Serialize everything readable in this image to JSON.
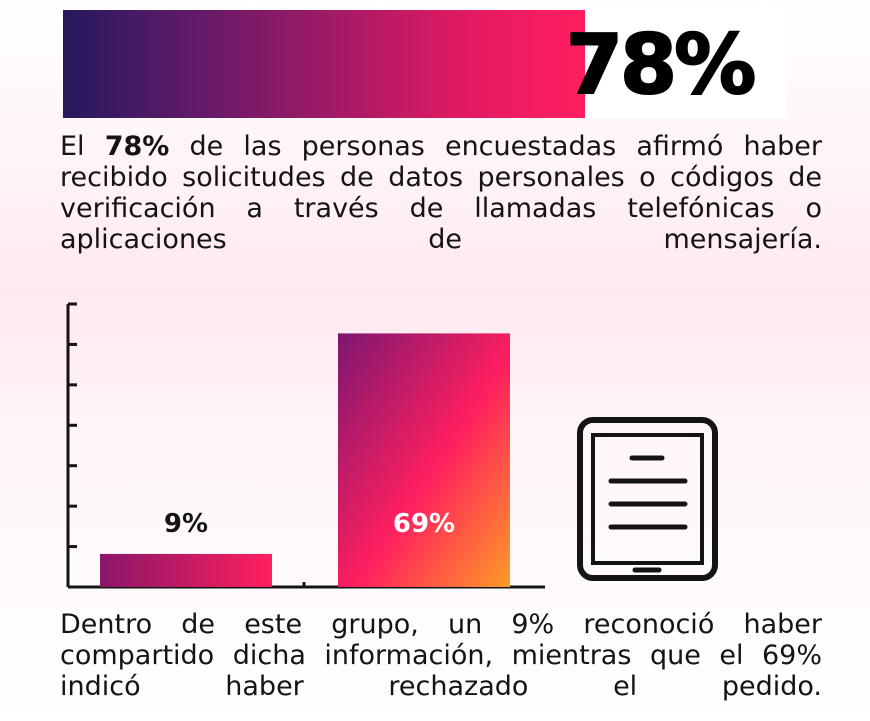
{
  "headline": {
    "value": "78%",
    "fill_fraction": 0.78
  },
  "intro": {
    "before": "El ",
    "bold": "78%",
    "after": " de las personas encuestadas afirmó haber recibido solicitudes de datos personales o códigos de verificación a través de llamadas telefónicas o aplicaciones de mensajería."
  },
  "chart_data": {
    "type": "bar",
    "categories": [
      "",
      ""
    ],
    "values": [
      9,
      69
    ],
    "value_labels": [
      "9%",
      "69%"
    ],
    "title": "",
    "xlabel": "",
    "ylabel": "",
    "ylim": [
      0,
      77
    ],
    "ytick_count": 8,
    "grid": false,
    "legend": "none",
    "colors": {
      "bar_gradient": [
        "#7d1770",
        "#ff1f5f",
        "#ff9b26"
      ],
      "axis": "#141414",
      "label_dark": "#141414",
      "label_light": "#ffffff"
    }
  },
  "icon": {
    "name": "tablet-document-icon"
  },
  "outro": {
    "text": "Dentro de este grupo, un 9% reconoció haber compartido dicha información, mientras que el 69% indicó haber rechazado el pedido."
  }
}
